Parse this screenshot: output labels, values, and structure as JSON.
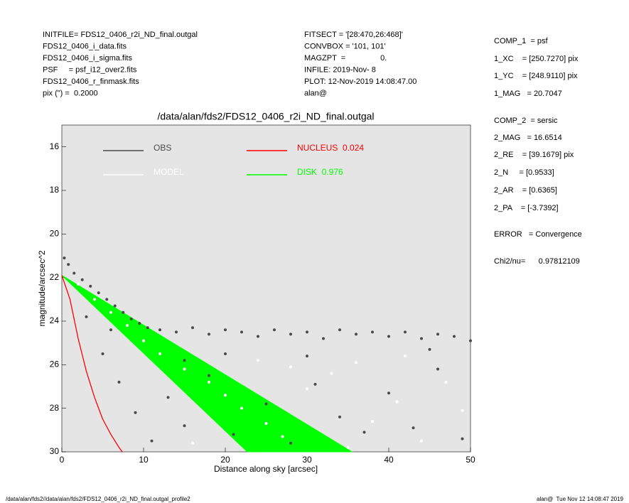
{
  "header": {
    "left": [
      "INITFILE= FDS12_0406_r2i_ND_final.outgal",
      "FDS12_0406_i_data.fits",
      "FDS12_0406_i_sigma.fits",
      "PSF     = psf_i12_over2.fits",
      "FDS12_0406_r_finmask.fits",
      "pix (\") =  0.2000"
    ],
    "middle": [
      "FITSECT = '[28:470,26:468]'",
      "CONVBOX = '101, 101'",
      "MAGZPT  =                0.",
      "INFILE: 2019-Nov- 8",
      "PLOT: 12-Nov-2019 14:08:47.00",
      "alan@"
    ],
    "right": [
      "COMP_1  = psf",
      "1_XC    = [250.7270] pix",
      "1_YC    = [248.9110] pix",
      "1_MAG   = 20.7047",
      "COMP_2  = sersic",
      "2_MAG   = 16.6514",
      "2_RE    = [39.1679] pix",
      "2_N     = [0.9533]",
      "2_AR    = [0.6365]",
      "2_PA    = [-3.7392]",
      "ERROR   = Convergence",
      "Chi2/nu=      0.97812109"
    ]
  },
  "footer": {
    "left": "/data/alan/fds2//data/alan/fds2/FDS12_0406_r2i_ND_final.outgal_profile2",
    "right": "alan@  Tue Nov 12 14:08:47 2019"
  },
  "chart_data": {
    "type": "scatter",
    "title": "/data/alan/fds2/FDS12_0406_r2i_ND_final.outgal",
    "xlabel": "Distance along sky [arcsec]",
    "ylabel": "magnitude/arcsec^2",
    "xlim": [
      0,
      50
    ],
    "xticks": [
      0,
      10,
      20,
      30,
      40,
      50
    ],
    "ylim": [
      30,
      15
    ],
    "yticks": [
      16,
      18,
      20,
      22,
      24,
      26,
      28,
      30
    ],
    "series": [
      {
        "name": "OBS",
        "color": "#4a4a4a",
        "type": "scatter",
        "x": [
          0.3,
          0.8,
          1.5,
          2.5,
          3.5,
          4.5,
          5.5,
          6.5,
          7.5,
          8.5,
          9.5,
          10.5,
          12,
          14,
          16,
          18,
          20,
          22,
          24,
          26,
          28,
          30,
          32,
          34,
          36,
          38,
          40,
          42,
          44,
          46,
          48,
          50,
          5,
          7,
          9,
          11,
          13,
          15,
          18,
          21,
          25,
          28,
          31,
          34,
          37,
          40,
          43,
          46,
          49,
          15,
          20,
          30,
          45,
          3,
          6
        ],
        "values": [
          21.1,
          21.4,
          21.8,
          22.1,
          22.4,
          22.7,
          23.0,
          23.3,
          23.6,
          23.9,
          24.1,
          24.3,
          24.4,
          24.5,
          24.3,
          24.6,
          24.4,
          24.5,
          24.7,
          24.4,
          24.6,
          24.5,
          24.8,
          24.4,
          24.6,
          24.5,
          24.7,
          24.5,
          24.8,
          24.6,
          24.7,
          24.9,
          25.5,
          26.8,
          28.2,
          29.5,
          27.5,
          28.8,
          26.5,
          29.2,
          27.8,
          29.6,
          26.9,
          28.4,
          29.1,
          27.3,
          28.9,
          26.2,
          29.4,
          25.8,
          25.5,
          25.6,
          25.3,
          23.8,
          24.4
        ]
      },
      {
        "name": "MODEL",
        "color": "#ffffff",
        "type": "scatter",
        "x": [
          2,
          4,
          6,
          8,
          10,
          12,
          15,
          18,
          20,
          22,
          25,
          27,
          30,
          33,
          36,
          38,
          41,
          44,
          47,
          49,
          16,
          24,
          35,
          42,
          28
        ],
        "values": [
          22.3,
          23,
          23.6,
          24.2,
          24.9,
          25.5,
          26.2,
          26.8,
          27.4,
          28,
          28.7,
          29.3,
          27.1,
          26.4,
          25.9,
          28.6,
          27.7,
          29.5,
          26.8,
          28.1,
          29.6,
          25.8,
          29.8,
          25.6,
          26.1
        ]
      },
      {
        "name": "NUCLEUS  0.024",
        "color": "#ff0000",
        "type": "line",
        "x": [
          0,
          1,
          2,
          3,
          4,
          5,
          6,
          7,
          7.4
        ],
        "values": [
          21.9,
          23,
          24.8,
          26.3,
          27.5,
          28.5,
          29.2,
          29.8,
          30
        ]
      },
      {
        "name": "DISK  0.976",
        "color": "#00ff00",
        "type": "area",
        "x": [
          0,
          35.5,
          22.7
        ],
        "values": [
          21.9,
          30,
          30
        ]
      }
    ]
  }
}
